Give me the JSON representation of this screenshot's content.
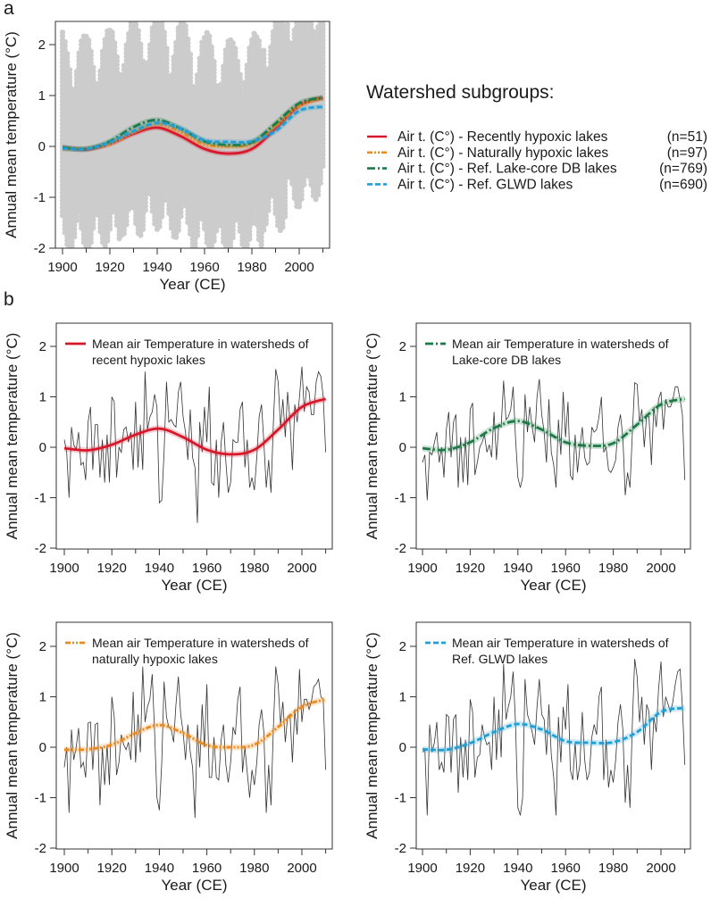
{
  "panel_letters": {
    "a": "a",
    "b": "b"
  },
  "legend": {
    "title": "Watershed subgroups:",
    "entries": [
      {
        "label": "Air t. (C°) - Recently hypoxic lakes",
        "n": "(n=51)",
        "color": "#d7182a",
        "style": "solid"
      },
      {
        "label": "Air t. (C°) - Naturally hypoxic lakes",
        "n": "(n=97)",
        "color": "#f08a1c",
        "style": "dash-dot-dot"
      },
      {
        "label": "Air t. (C°) - Ref. Lake-core DB lakes",
        "n": "(n=769)",
        "color": "#1b7a45",
        "style": "dash-dot"
      },
      {
        "label": "Air t. (C°) - Ref. GLWD lakes",
        "n": "(n=690)",
        "color": "#1f9fd8",
        "style": "dashed"
      }
    ]
  },
  "chart_data": [
    {
      "id": "a",
      "type": "scatter",
      "xlabel": "Year (CE)",
      "ylabel": "Annual mean temperature (°C)",
      "xlim": [
        1897,
        2013
      ],
      "ylim": [
        -2,
        2.45
      ],
      "x_ticks": [
        1900,
        1920,
        1940,
        1960,
        1980,
        2000
      ],
      "y_ticks": [
        -2,
        -1,
        0,
        1,
        2
      ],
      "scatter_color": "#cccccc",
      "scatter_cloud_spread": [
        -1.1,
        1.0
      ],
      "smooth_x": [
        1900,
        1910,
        1920,
        1930,
        1940,
        1950,
        1960,
        1970,
        1980,
        1990,
        2000,
        2010
      ],
      "series": [
        {
          "name": "Recently hypoxic lakes",
          "color": "#d7182a",
          "style": "solid",
          "smooth": [
            -0.02,
            -0.06,
            0.05,
            0.25,
            0.37,
            0.2,
            -0.05,
            -0.14,
            -0.05,
            0.35,
            0.8,
            0.96
          ]
        },
        {
          "name": "Naturally hypoxic lakes",
          "color": "#f08a1c",
          "style": "dash-dot-dot",
          "smooth": [
            -0.05,
            -0.04,
            0.05,
            0.28,
            0.44,
            0.28,
            0.04,
            0.0,
            0.05,
            0.4,
            0.8,
            0.95
          ]
        },
        {
          "name": "Ref. Lake-core DB lakes",
          "color": "#1b7a45",
          "style": "dash-dot",
          "smooth": [
            -0.02,
            -0.05,
            0.1,
            0.38,
            0.52,
            0.35,
            0.1,
            0.03,
            0.08,
            0.45,
            0.85,
            0.96
          ]
        },
        {
          "name": "Ref. GLWD lakes",
          "color": "#1f9fd8",
          "style": "dashed",
          "smooth": [
            -0.04,
            -0.05,
            0.08,
            0.3,
            0.46,
            0.35,
            0.12,
            0.09,
            0.1,
            0.3,
            0.7,
            0.78
          ]
        }
      ]
    },
    {
      "id": "b1",
      "type": "line",
      "xlabel": "Year (CE)",
      "ylabel": "Annual mean temperature (°C)",
      "xlim": [
        1897,
        2013
      ],
      "ylim": [
        -2,
        2.45
      ],
      "x_ticks": [
        1900,
        1920,
        1940,
        1960,
        1980,
        2000
      ],
      "y_ticks": [
        -2,
        -1,
        0,
        1,
        2
      ],
      "legend_line1": "Mean air Temperature in watersheds of",
      "legend_line2": "recent hypoxic lakes",
      "color": "#d7182a",
      "style": "solid",
      "x_start": 1900,
      "annual": [
        0.15,
        -0.1,
        -1.0,
        0.4,
        0.05,
        -0.05,
        0.3,
        -0.35,
        -0.3,
        -0.65,
        0.5,
        0.8,
        -0.45,
        0.45,
        0.45,
        -0.6,
        0.15,
        -0.7,
        0.25,
        -0.7,
        1.0,
        0.9,
        -0.6,
        0.0,
        -0.1,
        0.35,
        0.4,
        0.1,
        0.3,
        -0.45,
        0.9,
        -0.4,
        0.45,
        -0.45,
        1.5,
        0.35,
        0.6,
        0.7,
        1.05,
        0.8,
        -1.1,
        -1.05,
        -0.1,
        1.3,
        0.5,
        0.55,
        0.45,
        0.4,
        1.1,
        1.3,
        0.6,
        0.3,
        -0.25,
        0.75,
        -0.2,
        -0.4,
        -1.5,
        0.5,
        -0.1,
        0.8,
        0.1,
        1.2,
        -0.7,
        -0.75,
        0.15,
        -1.0,
        0.1,
        0.5,
        -0.3,
        -0.9,
        -0.7,
        0.15,
        0.1,
        0.1,
        0.75,
        0.9,
        -0.4,
        0.15,
        -0.8,
        -0.6,
        -0.85,
        -0.2,
        0.6,
        0.85,
        0.1,
        -0.8,
        -0.25,
        -0.9,
        0.5,
        1.55,
        1.3,
        0.4,
        0.95,
        0.2,
        1.1,
        0.5,
        -0.45,
        0.85,
        0.5,
        1.0,
        1.6,
        0.7,
        1.2,
        1.1,
        0.65,
        0.65,
        1.3,
        1.5,
        1.4,
        1.0,
        -0.1
      ],
      "smooth_x": [
        1900,
        1910,
        1920,
        1930,
        1940,
        1950,
        1960,
        1970,
        1980,
        1990,
        2000,
        2010
      ],
      "smooth": [
        -0.02,
        -0.06,
        0.05,
        0.25,
        0.37,
        0.2,
        -0.05,
        -0.14,
        -0.05,
        0.35,
        0.8,
        0.96
      ]
    },
    {
      "id": "b2",
      "type": "line",
      "xlabel": "Year (CE)",
      "ylabel": "Annual mean temperature (°C)",
      "xlim": [
        1897,
        2013
      ],
      "ylim": [
        -2,
        2.45
      ],
      "x_ticks": [
        1900,
        1920,
        1940,
        1960,
        1980,
        2000
      ],
      "y_ticks": [
        -2,
        -1,
        0,
        1,
        2
      ],
      "legend_line1": "Mean air Temperature in watersheds of",
      "legend_line2": "Lake-core DB lakes",
      "color": "#1b7a45",
      "style": "dash-dot",
      "x_start": 1900,
      "annual": [
        -0.3,
        -0.15,
        -1.05,
        -0.1,
        -0.15,
        0.1,
        0.3,
        -0.3,
        0.0,
        -0.6,
        0.35,
        0.7,
        -0.2,
        0.5,
        0.65,
        -0.8,
        0.2,
        -0.7,
        0.2,
        -0.75,
        0.75,
        0.88,
        -0.55,
        -0.3,
        0.0,
        0.1,
        0.25,
        -0.1,
        0.05,
        -0.2,
        0.7,
        -0.25,
        0.45,
        0.4,
        1.32,
        0.55,
        0.6,
        0.75,
        1.2,
        0.2,
        -0.6,
        -0.8,
        -0.6,
        1.05,
        0.3,
        0.8,
        0.4,
        0.1,
        1.0,
        1.35,
        0.65,
        0.3,
        -0.3,
        0.95,
        -0.1,
        -0.35,
        -0.8,
        0.55,
        -0.15,
        1.1,
        0.2,
        0.9,
        -0.55,
        -0.65,
        0.25,
        -0.5,
        0.0,
        0.4,
        -0.2,
        -0.35,
        -0.3,
        0.4,
        0.3,
        0.35,
        0.6,
        1.0,
        -0.1,
        0.0,
        -0.45,
        -0.5,
        -0.4,
        -0.25,
        0.4,
        0.65,
        0.2,
        -0.95,
        -0.5,
        -0.8,
        0.3,
        1.28,
        1.25,
        0.5,
        0.75,
        0.0,
        0.65,
        0.6,
        -0.35,
        0.8,
        0.4,
        0.95,
        1.1,
        0.35,
        0.95,
        0.8,
        0.8,
        0.95,
        1.2,
        1.2,
        0.95,
        0.65,
        -0.65
      ],
      "smooth_x": [
        1900,
        1910,
        1920,
        1930,
        1940,
        1950,
        1960,
        1970,
        1980,
        1990,
        2000,
        2010
      ],
      "smooth": [
        -0.02,
        -0.05,
        0.1,
        0.38,
        0.52,
        0.35,
        0.1,
        0.03,
        0.08,
        0.45,
        0.85,
        0.96
      ]
    },
    {
      "id": "b3",
      "type": "line",
      "xlabel": "Year (CE)",
      "ylabel": "Annual mean temperature (°C)",
      "xlim": [
        1897,
        2013
      ],
      "ylim": [
        -2,
        2.45
      ],
      "x_ticks": [
        1900,
        1920,
        1940,
        1960,
        1980,
        2000
      ],
      "y_ticks": [
        -2,
        -1,
        0,
        1,
        2
      ],
      "legend_line1": "Mean air Temperature in watersheds of",
      "legend_line2": "naturally hypoxic lakes",
      "color": "#f08a1c",
      "style": "dash-dot-dot",
      "x_start": 1900,
      "annual": [
        -0.4,
        0.0,
        -1.3,
        0.35,
        -0.25,
        0.0,
        0.38,
        -0.4,
        -0.3,
        -0.6,
        0.48,
        0.5,
        -0.45,
        0.45,
        0.48,
        -1.15,
        0.0,
        -0.75,
        0.05,
        -0.75,
        1.0,
        0.6,
        -0.55,
        -0.3,
        0.25,
        0.05,
        -0.05,
        0.1,
        -0.25,
        1.1,
        -0.3,
        0.65,
        -0.1,
        1.6,
        0.5,
        0.8,
        0.95,
        1.45,
        0.3,
        -1.0,
        -1.25,
        -0.3,
        1.3,
        0.6,
        0.4,
        0.35,
        0.1,
        0.85,
        1.4,
        0.65,
        0.3,
        -0.25,
        0.45,
        -0.1,
        -0.4,
        -1.4,
        0.45,
        -0.4,
        0.85,
        0.0,
        1.25,
        -0.6,
        -0.6,
        0.2,
        -0.6,
        -0.65,
        0.15,
        0.45,
        -0.35,
        -0.7,
        -0.3,
        0.4,
        0.25,
        0.95,
        1.2,
        -0.5,
        0.0,
        -0.5,
        -1.0,
        -0.45,
        -0.75,
        -0.3,
        0.45,
        0.75,
        0.3,
        -1.3,
        -0.35,
        -1.15,
        0.4,
        1.6,
        1.25,
        0.45,
        0.9,
        0.1,
        0.6,
        0.65,
        -0.3,
        0.75,
        0.25,
        1.55,
        0.5,
        0.95,
        0.95,
        0.75,
        0.9,
        1.2,
        1.25,
        1.35,
        1.0,
        0.95,
        -0.45
      ],
      "smooth_x": [
        1900,
        1910,
        1920,
        1930,
        1940,
        1950,
        1960,
        1970,
        1980,
        1990,
        2000,
        2010
      ],
      "smooth": [
        -0.05,
        -0.04,
        0.05,
        0.28,
        0.44,
        0.28,
        0.04,
        0.0,
        0.05,
        0.4,
        0.8,
        0.95
      ]
    },
    {
      "id": "b4",
      "type": "line",
      "xlabel": "Year (CE)",
      "ylabel": "Annual mean temperature (°C)",
      "xlim": [
        1897,
        2013
      ],
      "ylim": [
        -2,
        2.45
      ],
      "x_ticks": [
        1900,
        1920,
        1940,
        1960,
        1980,
        2000
      ],
      "y_ticks": [
        -2,
        -1,
        0,
        1,
        2
      ],
      "legend_line1": "Mean air Temperature in watersheds of",
      "legend_line2": "Ref. GLWD lakes",
      "color": "#1f9fd8",
      "style": "dashed",
      "x_start": 1900,
      "annual": [
        -0.1,
        -0.05,
        -1.35,
        0.45,
        -0.1,
        0.1,
        0.5,
        -0.45,
        -0.3,
        -0.5,
        0.65,
        0.6,
        -0.5,
        0.55,
        0.65,
        -0.9,
        0.2,
        -0.6,
        0.15,
        -0.65,
        0.95,
        0.7,
        -0.6,
        -0.2,
        -0.15,
        0.45,
        0.2,
        0.05,
        0.1,
        -0.45,
        1.0,
        -0.25,
        0.75,
        -0.2,
        1.65,
        0.55,
        0.8,
        1.0,
        1.5,
        0.5,
        -1.2,
        -1.35,
        -1.0,
        1.35,
        0.65,
        0.5,
        0.3,
        0.05,
        0.8,
        1.35,
        0.65,
        0.55,
        -0.15,
        0.85,
        -0.15,
        -0.6,
        -1.35,
        0.6,
        -0.3,
        0.8,
        0.35,
        1.25,
        -0.45,
        -0.65,
        0.1,
        -0.65,
        -0.35,
        0.7,
        -0.25,
        -0.65,
        -0.5,
        0.2,
        0.45,
        0.25,
        1.0,
        1.2,
        -0.65,
        0.15,
        -0.8,
        -0.45,
        -0.7,
        -0.25,
        0.5,
        0.85,
        0.35,
        -1.1,
        -0.35,
        -1.2,
        0.5,
        1.75,
        1.4,
        0.5,
        1.0,
        0.05,
        0.85,
        0.7,
        -0.45,
        0.6,
        0.3,
        1.15,
        1.7,
        0.6,
        1.0,
        0.85,
        0.7,
        0.9,
        1.25,
        1.5,
        1.55,
        0.8,
        -0.35
      ],
      "smooth_x": [
        1900,
        1910,
        1920,
        1930,
        1940,
        1950,
        1960,
        1970,
        1980,
        1990,
        2000,
        2010
      ],
      "smooth": [
        -0.04,
        -0.05,
        0.08,
        0.3,
        0.46,
        0.35,
        0.12,
        0.09,
        0.1,
        0.3,
        0.7,
        0.78
      ]
    }
  ]
}
